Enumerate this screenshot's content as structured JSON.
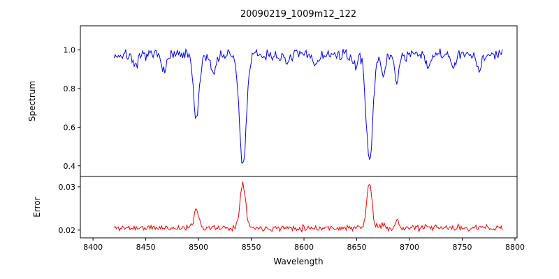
{
  "title": "20090219_1009m12_122",
  "xlabel": "Wavelength",
  "chart_data": [
    {
      "type": "line",
      "panel": "spectrum",
      "ylabel": "Spectrum",
      "legend": "none",
      "grid": false,
      "color": "#0000ee",
      "xlim": [
        8388,
        8802
      ],
      "ylim": [
        0.345,
        1.125
      ],
      "xticks": [
        8400,
        8450,
        8500,
        8550,
        8600,
        8650,
        8700,
        8750,
        8800
      ],
      "xtick_labels": [
        "8400",
        "8450",
        "8500",
        "8550",
        "8600",
        "8650",
        "8700",
        "8750",
        "8800"
      ],
      "yticks": [
        0.4,
        0.6,
        0.8,
        1.0
      ],
      "ytick_labels": [
        "0.4",
        "0.6",
        "0.8",
        "1.0"
      ],
      "x_start": 8420,
      "x_end": 8788,
      "x_step": 1,
      "continuum": 0.972,
      "noise_amplitude": 0.03,
      "noise_seed": 7,
      "absorption_lines": [
        {
          "center": 8441,
          "depth": 0.07,
          "width": 2.0
        },
        {
          "center": 8468,
          "depth": 0.08,
          "width": 2.0
        },
        {
          "center": 8498,
          "depth": 0.34,
          "width": 2.6
        },
        {
          "center": 8514,
          "depth": 0.1,
          "width": 2.0
        },
        {
          "center": 8542,
          "depth": 0.575,
          "width": 3.2
        },
        {
          "center": 8583,
          "depth": 0.05,
          "width": 2.0
        },
        {
          "center": 8611,
          "depth": 0.05,
          "width": 2.0
        },
        {
          "center": 8648,
          "depth": 0.06,
          "width": 2.0
        },
        {
          "center": 8662,
          "depth": 0.555,
          "width": 3.0
        },
        {
          "center": 8675,
          "depth": 0.12,
          "width": 2.0
        },
        {
          "center": 8688,
          "depth": 0.13,
          "width": 2.0
        },
        {
          "center": 8717,
          "depth": 0.06,
          "width": 2.0
        },
        {
          "center": 8742,
          "depth": 0.06,
          "width": 2.0
        },
        {
          "center": 8766,
          "depth": 0.07,
          "width": 2.0
        }
      ]
    },
    {
      "type": "line",
      "panel": "error",
      "ylabel": "Error",
      "legend": "none",
      "grid": false,
      "color": "#ee0000",
      "xlim": [
        8388,
        8802
      ],
      "ylim": [
        0.0182,
        0.0324
      ],
      "yticks": [
        0.02,
        0.03
      ],
      "ytick_labels": [
        "0.02",
        "0.03"
      ],
      "x_start": 8420,
      "x_end": 8788,
      "x_step": 1,
      "baseline": 0.0205,
      "noise_amplitude": 0.0007,
      "noise_seed": 11,
      "emission_peaks": [
        {
          "center": 8498,
          "height": 0.0046,
          "width": 2.2
        },
        {
          "center": 8542,
          "height": 0.0107,
          "width": 2.6
        },
        {
          "center": 8662,
          "height": 0.0106,
          "width": 2.4
        },
        {
          "center": 8675,
          "height": 0.0008,
          "width": 2.0
        },
        {
          "center": 8688,
          "height": 0.0014,
          "width": 2.0
        }
      ]
    }
  ]
}
